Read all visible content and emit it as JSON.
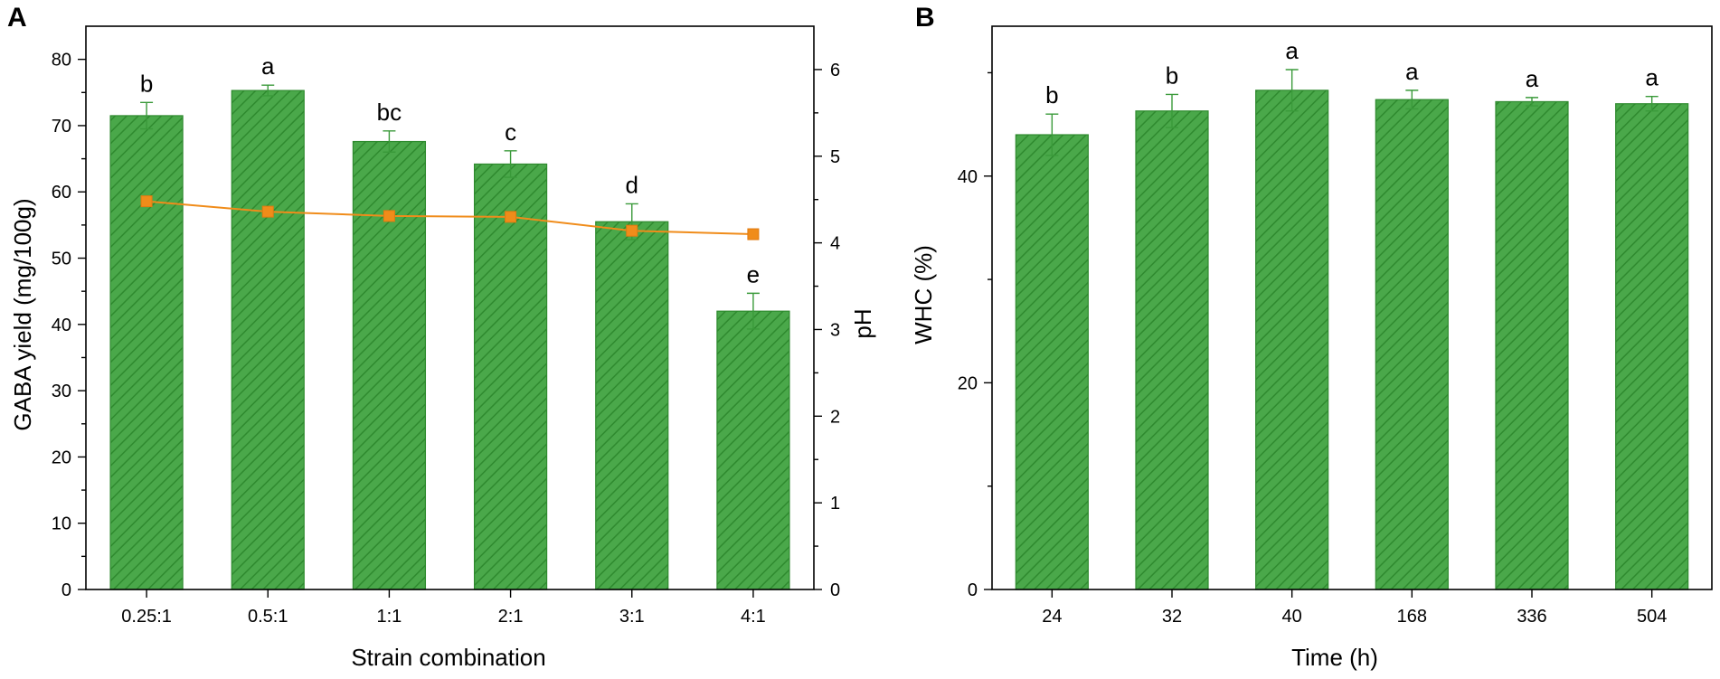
{
  "colors": {
    "bar_fill": "#4aa84a",
    "bar_stroke": "#2e8a2e",
    "hatch": "#2f8a2f",
    "ph_line": "#f08c1a"
  },
  "chart_data": [
    {
      "panel": "A",
      "type": "bar",
      "xlabel": "Strain combination",
      "ylabel": "GABA yield (mg/100g)",
      "y2label": "pH",
      "categories": [
        "0.25:1",
        "0.5:1",
        "1:1",
        "2:1",
        "3:1",
        "4:1"
      ],
      "values": [
        71.5,
        75.3,
        67.6,
        64.2,
        55.5,
        42.0
      ],
      "errors": [
        2.0,
        0.8,
        1.6,
        2.0,
        2.7,
        2.7
      ],
      "sig": [
        "b",
        "a",
        "bc",
        "c",
        "d",
        "e"
      ],
      "ylim": [
        0,
        85
      ],
      "yticks": [
        0,
        10,
        20,
        30,
        40,
        50,
        60,
        70,
        80
      ],
      "y2lim": [
        0,
        6.5
      ],
      "y2ticks": [
        0,
        1,
        2,
        3,
        4,
        5,
        6
      ],
      "ph_series": {
        "name": "pH",
        "type": "line",
        "values": [
          4.48,
          4.36,
          4.31,
          4.3,
          4.14,
          4.1
        ]
      }
    },
    {
      "panel": "B",
      "type": "bar",
      "xlabel": "Time (h)",
      "ylabel": "WHC (%)",
      "categories": [
        "24",
        "32",
        "40",
        "168",
        "336",
        "504"
      ],
      "values": [
        44.0,
        46.3,
        48.3,
        47.4,
        47.2,
        47.0
      ],
      "errors": [
        2.0,
        1.6,
        2.0,
        0.9,
        0.4,
        0.7
      ],
      "sig": [
        "b",
        "b",
        "a",
        "a",
        "a",
        "a"
      ],
      "ylim": [
        0,
        54.5
      ],
      "yticks": [
        0,
        20,
        40
      ]
    }
  ]
}
